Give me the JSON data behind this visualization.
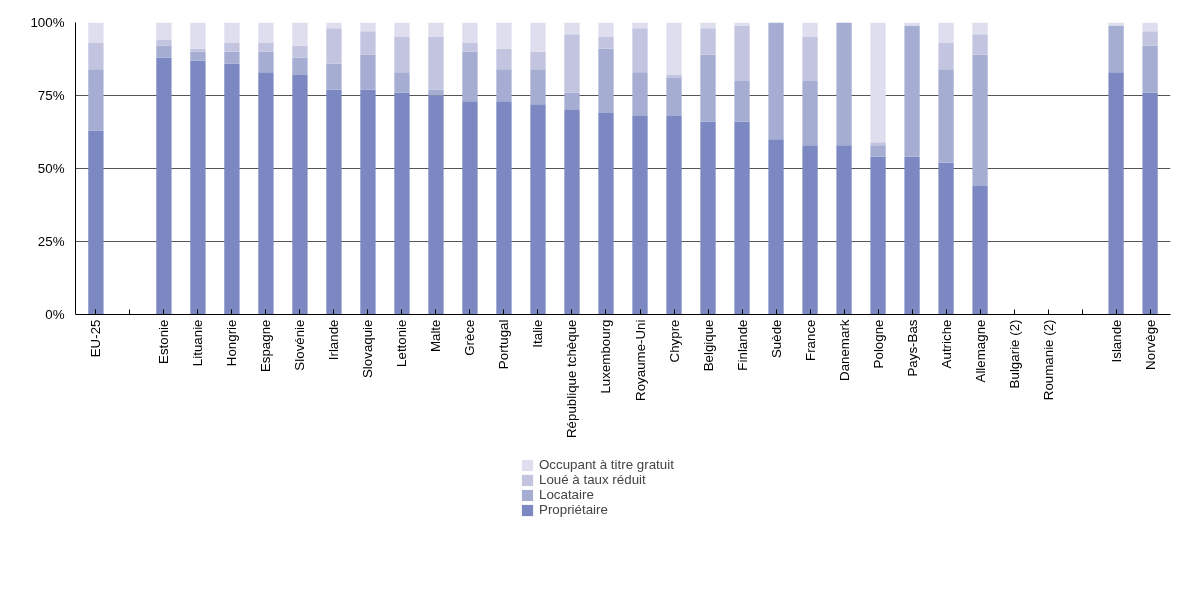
{
  "chart_data": {
    "type": "bar",
    "stacked": true,
    "categories": [
      "EU-25",
      null,
      "Estonie",
      "Lituanie",
      "Hongrie",
      "Espagne",
      "Slovénie",
      "Irlande",
      "Slovaquie",
      "Lettonie",
      "Malte",
      "Grèce",
      "Portugal",
      "Italie",
      "République tchèque",
      "Luxembourg",
      "Royaume-Uni",
      "Chypre",
      "Belgique",
      "Finlande",
      "Suède",
      "France",
      "Danemark",
      "Pologne",
      "Pays-Bas",
      "Autriche",
      "Allemagne",
      "Bulgarie (2)",
      "Roumanie (2)",
      null,
      "Islande",
      "Norvège"
    ],
    "series": [
      {
        "name": "Propriétaire",
        "color": "#7b88c2",
        "values": [
          63,
          null,
          88,
          87,
          86,
          83,
          82,
          77,
          77,
          76,
          75,
          73,
          73,
          72,
          70,
          69,
          68,
          68,
          66,
          66,
          60,
          58,
          58,
          54,
          54,
          52,
          44,
          null,
          null,
          null,
          83,
          76
        ]
      },
      {
        "name": "Locataire",
        "color": "#a6add3",
        "values": [
          21,
          null,
          4,
          3,
          4,
          7,
          6,
          9,
          12,
          7,
          2,
          17,
          11,
          12,
          6,
          22,
          15,
          13,
          23,
          14,
          40,
          22,
          42,
          4,
          45,
          32,
          45,
          null,
          null,
          null,
          16,
          16
        ]
      },
      {
        "name": "Loué à taux réduit",
        "color": "#c2c4e0",
        "values": [
          9,
          null,
          2,
          1,
          3,
          3,
          4,
          12,
          8,
          12,
          18,
          3,
          7,
          6,
          20,
          4,
          15,
          1,
          9,
          19,
          0,
          15,
          0,
          1,
          0,
          9,
          7,
          null,
          null,
          null,
          0,
          5
        ]
      },
      {
        "name": "Occupant à titre gratuit",
        "color": "#dedeee",
        "values": [
          7,
          null,
          6,
          9,
          7,
          7,
          8,
          2,
          3,
          5,
          5,
          7,
          9,
          10,
          4,
          5,
          2,
          18,
          2,
          1,
          0,
          5,
          0,
          41,
          1,
          7,
          4,
          null,
          null,
          null,
          1,
          3
        ]
      }
    ],
    "ylim": [
      0,
      100
    ],
    "yticks": [
      {
        "value": 0,
        "label": "0%"
      },
      {
        "value": 25,
        "label": "25%"
      },
      {
        "value": 50,
        "label": "50%"
      },
      {
        "value": 75,
        "label": "75%"
      },
      {
        "value": 100,
        "label": "100%"
      }
    ],
    "grid": "y",
    "legend": "bottom"
  }
}
